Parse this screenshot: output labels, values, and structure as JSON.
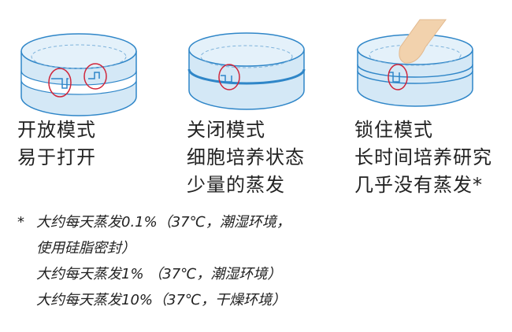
{
  "colors": {
    "dish_fill": "#d4e8f6",
    "dish_stroke": "#2f86c8",
    "highlight_circle": "#d0253a",
    "finger": "#f2d2ad"
  },
  "modes": [
    {
      "title": "开放模式",
      "lines": [
        "易于打开"
      ],
      "icon": "petri-dish-open-icon"
    },
    {
      "title": "关闭模式",
      "lines": [
        "细胞培养状态",
        "少量的蒸发"
      ],
      "icon": "petri-dish-closed-icon"
    },
    {
      "title": "锁住模式",
      "lines": [
        "长时间培养研究",
        "几乎没有蒸发*"
      ],
      "icon": "petri-dish-locked-icon"
    }
  ],
  "notes": {
    "marker": "*",
    "lines": [
      "大约每天蒸发0.1%（37℃，潮湿环境，",
      "使用硅脂密封）",
      "大约每天蒸发1% （37℃，潮湿环境）",
      "大约每天蒸发10%（37℃，干燥环境）"
    ]
  }
}
